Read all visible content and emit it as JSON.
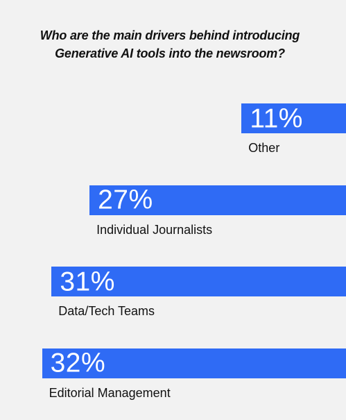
{
  "chart_data": {
    "type": "bar",
    "orientation": "horizontal",
    "title_lines": [
      "Who are the main drivers behind introducing",
      "Generative AI tools into the newsroom?"
    ],
    "categories": [
      "Other",
      "Individual Journalists",
      "Data/Tech Teams",
      "Editorial Management"
    ],
    "values": [
      11,
      27,
      31,
      32
    ],
    "value_labels": [
      "11%",
      "27%",
      "31%",
      "32%"
    ],
    "unit": "%",
    "grid": false,
    "legend": "none"
  },
  "colors": {
    "bar": "#2f6bf5",
    "background": "#f2f2f2",
    "text": "#111111",
    "value_text": "#ffffff"
  }
}
